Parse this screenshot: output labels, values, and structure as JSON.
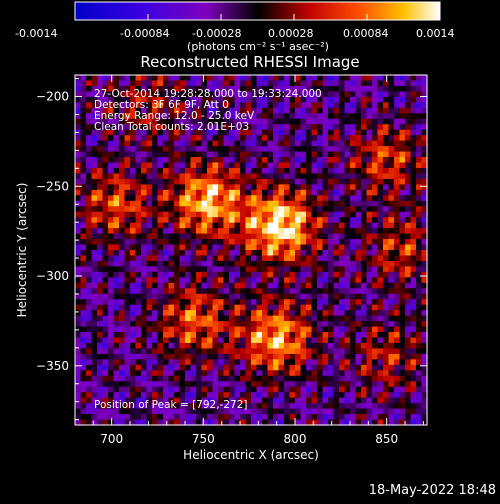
{
  "colorbar": {
    "ticks": [
      "-0.0014",
      "-0.00084",
      "-0.00028",
      "0.00028",
      "0.00084",
      "0.0014"
    ],
    "unit_label": "(photons cm⁻² s⁻¹ asec⁻²)"
  },
  "annotations": {
    "line1": "27-Oct-2014 19:28:28.000 to 19:33:24.000",
    "line2": "Detectors: 3F 6F 9F, Att 0",
    "line3": "Energy Range: 12.0 - 25.0 keV",
    "line4": "Clean     Total counts: 2.01E+03",
    "peak": "Position of Peak = [792,-272]"
  },
  "footer": {
    "timestamp": "18-May-2022 18:48"
  },
  "chart_data": {
    "type": "heatmap",
    "title": "Reconstructed RHESSI Image",
    "xlabel": "Heliocentric X (arcsec)",
    "ylabel": "Heliocentric Y (arcsec)",
    "xlim": [
      680,
      872
    ],
    "ylim": [
      -383,
      -188
    ],
    "xticks": [
      700,
      750,
      800,
      850
    ],
    "yticks": [
      -200,
      -250,
      -300,
      -350
    ],
    "colorscale_range": [
      -0.0014,
      0.0014
    ],
    "colormap": "rainbow-to-hot",
    "peak": {
      "x": 792,
      "y": -272
    },
    "sources": [
      {
        "x": 792,
        "y": -272,
        "relative_intensity": 1.0
      },
      {
        "x": 752,
        "y": -258,
        "relative_intensity": 0.85
      },
      {
        "x": 790,
        "y": -335,
        "relative_intensity": 0.8
      },
      {
        "x": 745,
        "y": -325,
        "relative_intensity": 0.6
      },
      {
        "x": 702,
        "y": -260,
        "relative_intensity": 0.55
      },
      {
        "x": 850,
        "y": -235,
        "relative_intensity": 0.5
      },
      {
        "x": 858,
        "y": -285,
        "relative_intensity": 0.45
      },
      {
        "x": 850,
        "y": -345,
        "relative_intensity": 0.4
      },
      {
        "x": 720,
        "y": -205,
        "relative_intensity": 0.35
      }
    ]
  }
}
